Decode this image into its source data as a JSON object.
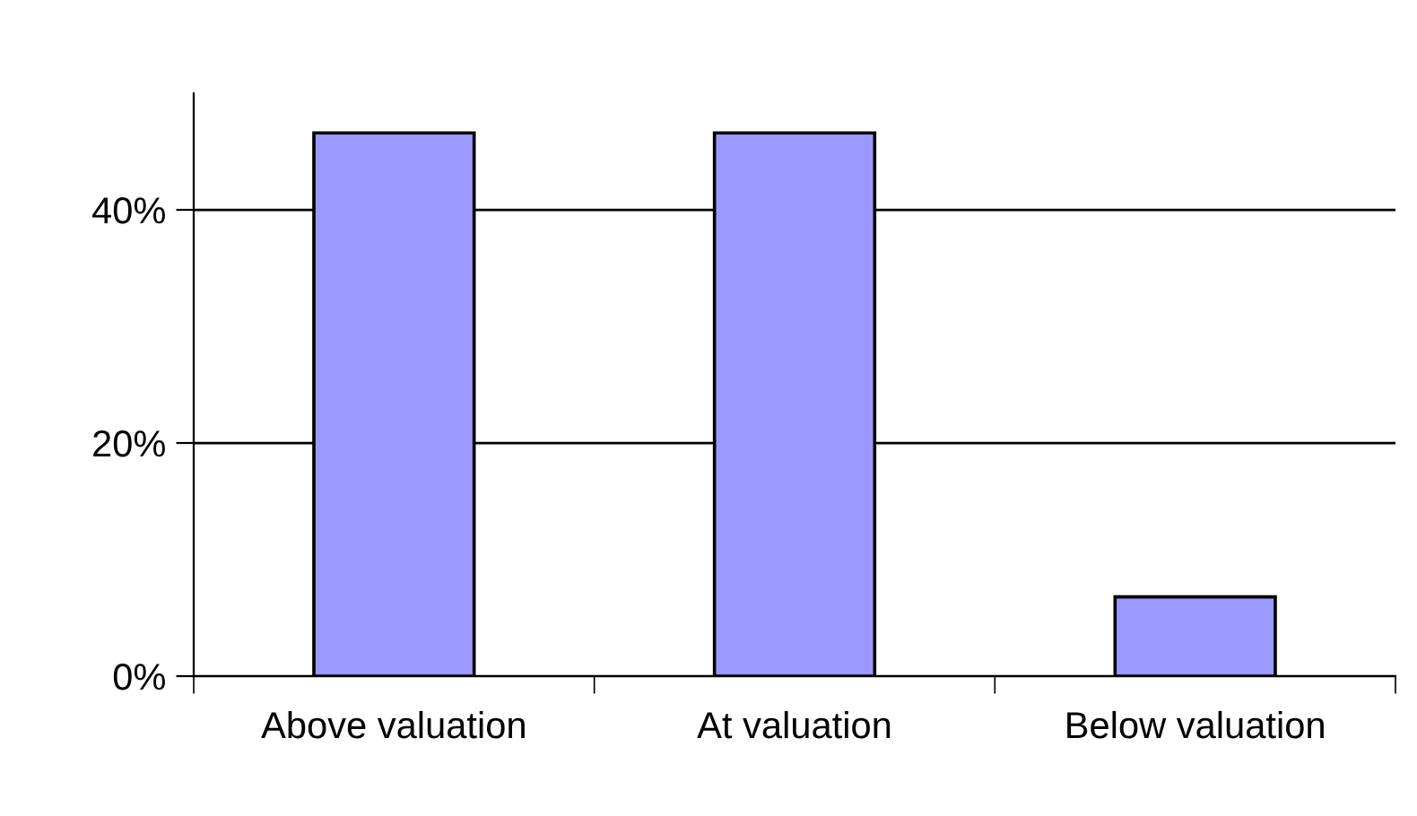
{
  "chart_data": {
    "type": "bar",
    "categories": [
      "Above valuation",
      "At valuation",
      "Below valuation"
    ],
    "values": [
      46.6,
      46.6,
      6.8
    ],
    "color": "#9999ff",
    "ylim": [
      0,
      50
    ],
    "yticks": [
      {
        "value": 0,
        "label": "0%"
      },
      {
        "value": 20,
        "label": "20%"
      },
      {
        "value": 40,
        "label": "40%"
      }
    ],
    "grid": "y",
    "legend": false
  }
}
